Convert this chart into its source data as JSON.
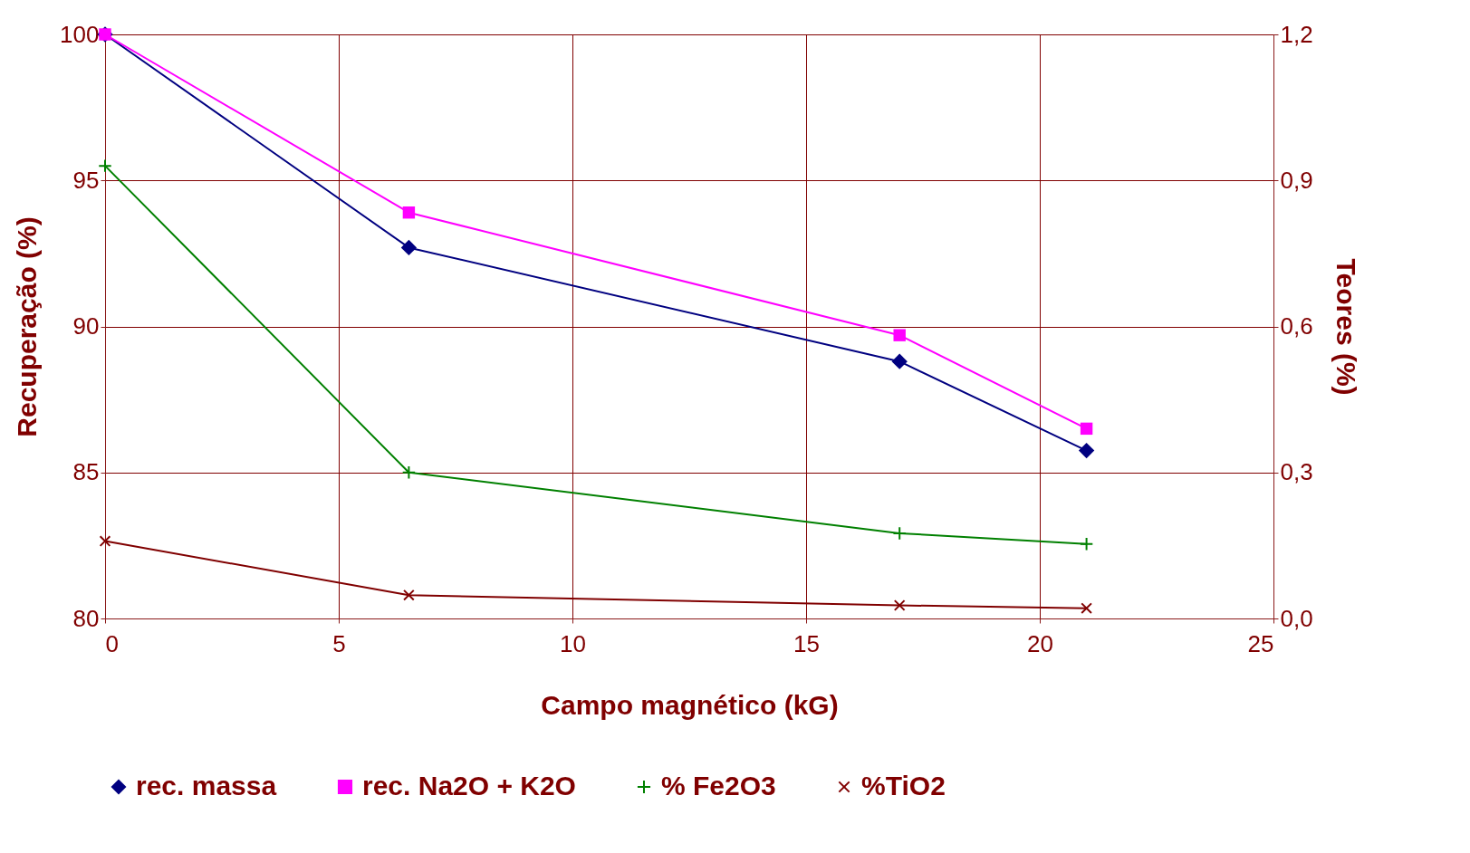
{
  "chart_data": {
    "type": "line",
    "xlabel": "Campo magnético (kG)",
    "ylabel": "Recuperação (%)",
    "y2label": "Teores (%)",
    "xlim": [
      0,
      25
    ],
    "xticks": [
      0,
      5,
      10,
      15,
      20,
      25
    ],
    "ylim": [
      80,
      100
    ],
    "yticks": [
      80,
      85,
      90,
      95,
      100
    ],
    "y2lim": [
      0,
      1.2
    ],
    "y2ticks": [
      {
        "value": 0,
        "label": "0,0"
      },
      {
        "value": 0.3,
        "label": "0,3"
      },
      {
        "value": 0.6,
        "label": "0,6"
      },
      {
        "value": 0.9,
        "label": "0,9"
      },
      {
        "value": 1.2,
        "label": "1,2"
      }
    ],
    "grid": true,
    "legend": "bottom",
    "series": [
      {
        "name": "rec. massa",
        "color": "#000080",
        "marker": "diamond",
        "x": [
          0,
          6.5,
          17,
          21
        ],
        "values": [
          100,
          92.7,
          88.8,
          85.75
        ]
      },
      {
        "name": "rec. Na2O + K2O",
        "color": "#ff00ff",
        "marker": "square",
        "x": [
          0,
          6.5,
          17,
          21
        ],
        "values": [
          100,
          93.9,
          89.7,
          86.5
        ]
      },
      {
        "name": "% Fe2O3",
        "color": "#008000",
        "marker": "cross",
        "axis": "y2",
        "x": [
          0,
          6.5,
          17,
          21
        ],
        "values": [
          0.93,
          0.3,
          0.175,
          0.153
        ]
      },
      {
        "name": "%TiO2",
        "color": "#800000",
        "marker": "x",
        "axis": "y2",
        "x": [
          0,
          6.5,
          17,
          21
        ],
        "values": [
          0.159,
          0.048,
          0.027,
          0.021
        ]
      }
    ]
  }
}
